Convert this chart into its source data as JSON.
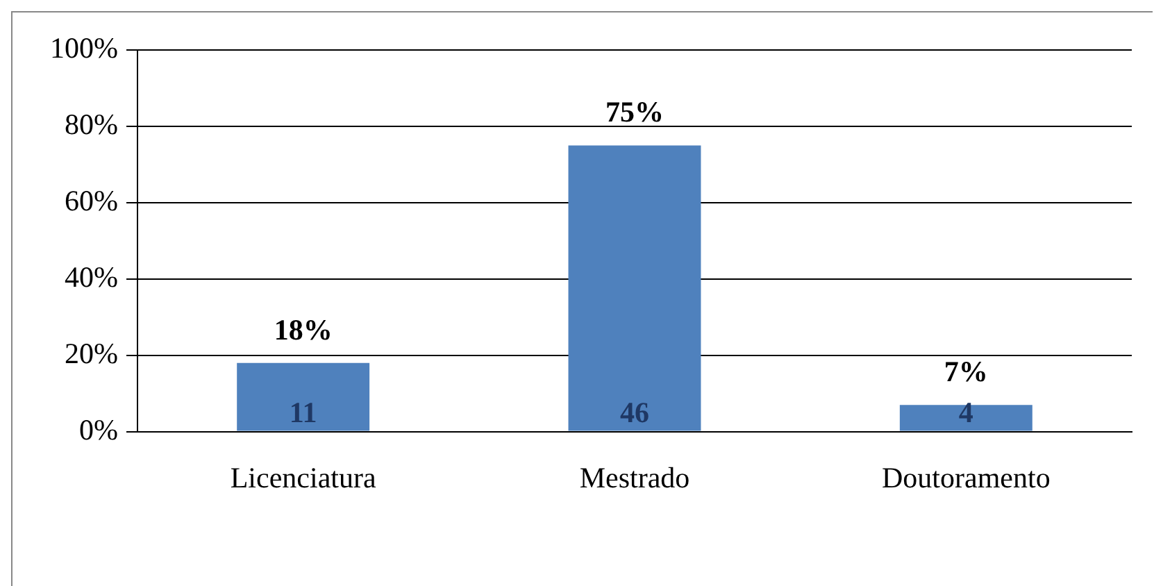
{
  "chart_data": {
    "type": "bar",
    "categories": [
      "Licenciatura",
      "Mestrado",
      "Doutoramento"
    ],
    "values": [
      18,
      75,
      7
    ],
    "value_labels": [
      "18%",
      "75%",
      "7%"
    ],
    "color": "#4f81bd",
    "ylim": [
      0,
      100
    ],
    "yticks": [
      {
        "value": 0,
        "label": "0%"
      },
      {
        "value": 20,
        "label": "20%"
      },
      {
        "value": 40,
        "label": "40%"
      },
      {
        "value": 60,
        "label": "60%"
      },
      {
        "value": 80,
        "label": "80%"
      },
      {
        "value": 100,
        "label": "100%"
      }
    ],
    "grid": "y",
    "legend": false,
    "annotations": [
      "11",
      "46",
      "4"
    ]
  }
}
